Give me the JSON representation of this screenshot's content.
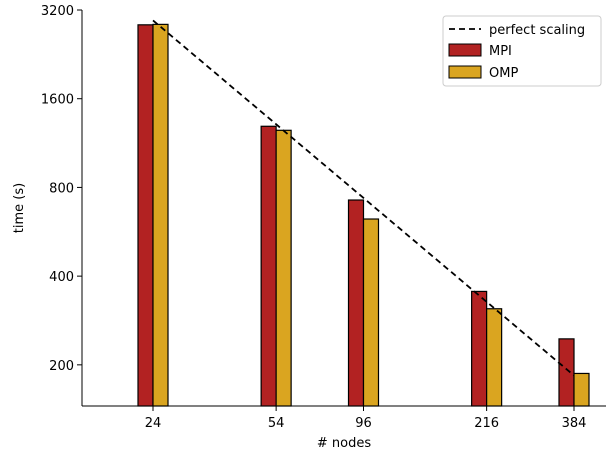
{
  "chart_data": {
    "type": "bar",
    "xlabel": "# nodes",
    "ylabel": "time (s)",
    "y_scale": "log2",
    "x_scale": "log",
    "ylim": [
      145,
      3200
    ],
    "yticks": [
      200,
      400,
      800,
      1600,
      3200
    ],
    "categories": [
      "24",
      "54",
      "96",
      "216",
      "384"
    ],
    "x": [
      24,
      54,
      96,
      216,
      384
    ],
    "series": [
      {
        "name": "MPI",
        "values": [
          2850,
          1290,
          725,
          355,
          245
        ],
        "color": "#b22222"
      },
      {
        "name": "OMP",
        "values": [
          2860,
          1250,
          625,
          310,
          187
        ],
        "color": "#daa520"
      }
    ],
    "reference_line": {
      "name": "perfect scaling",
      "style": "dashed",
      "color": "#000000",
      "x": [
        24,
        384
      ],
      "y": [
        2950,
        184
      ]
    },
    "legend": {
      "position": "top-right",
      "entries": [
        "perfect scaling",
        "MPI",
        "OMP"
      ]
    },
    "grid": false
  }
}
